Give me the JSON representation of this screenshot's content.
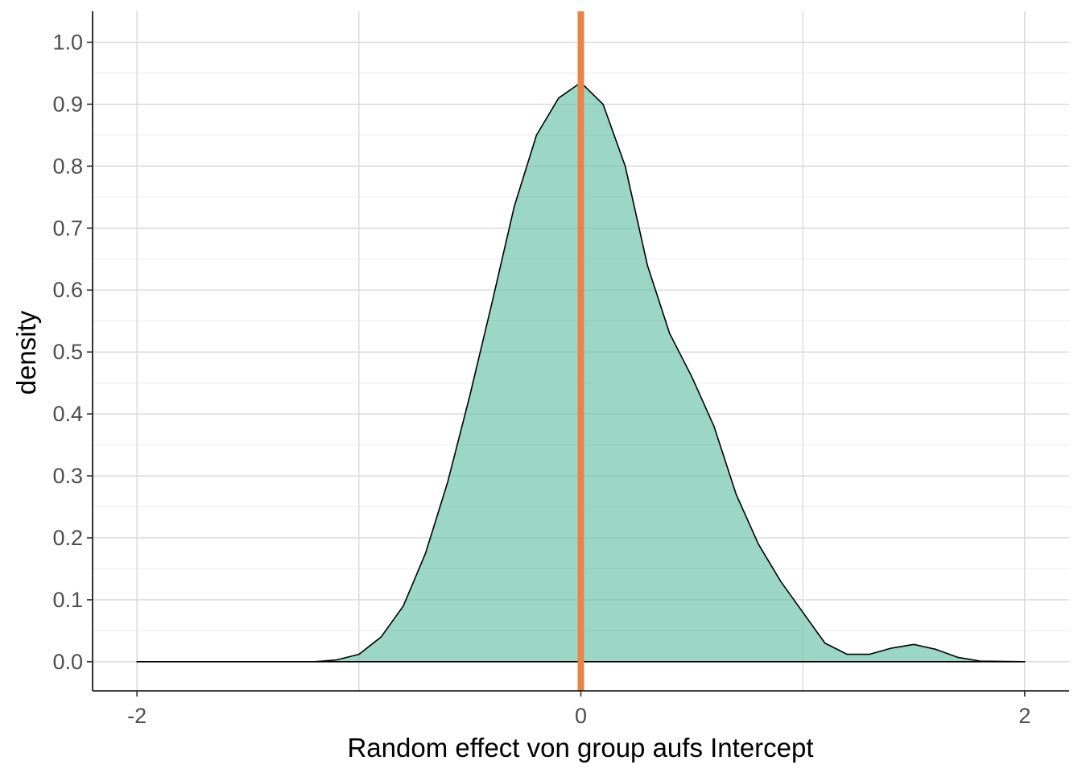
{
  "chart_data": {
    "type": "area",
    "title": "",
    "xlabel": "Random effect von group aufs Intercept",
    "ylabel": "density",
    "xlim": [
      -2.2,
      2.2
    ],
    "ylim": [
      -0.047,
      1.05
    ],
    "x_ticks": [
      -2,
      0,
      2
    ],
    "x_tick_labels": [
      "-2",
      "0",
      "2"
    ],
    "y_ticks": [
      0.0,
      0.1,
      0.2,
      0.3,
      0.4,
      0.5,
      0.6,
      0.7,
      0.8,
      0.9,
      1.0
    ],
    "y_tick_labels": [
      "0.0",
      "0.1",
      "0.2",
      "0.3",
      "0.4",
      "0.5",
      "0.6",
      "0.7",
      "0.8",
      "0.9",
      "1.0"
    ],
    "grid": true,
    "legend": "none",
    "series": [
      {
        "fill": "#66c2a5",
        "fill_opacity": 0.65,
        "stroke": "#000000",
        "points": [
          [
            -2.0,
            0.0
          ],
          [
            -1.2,
            0.0
          ],
          [
            -1.1,
            0.003
          ],
          [
            -1.0,
            0.012
          ],
          [
            -0.9,
            0.04
          ],
          [
            -0.8,
            0.09
          ],
          [
            -0.7,
            0.175
          ],
          [
            -0.6,
            0.29
          ],
          [
            -0.5,
            0.43
          ],
          [
            -0.4,
            0.58
          ],
          [
            -0.3,
            0.735
          ],
          [
            -0.2,
            0.85
          ],
          [
            -0.1,
            0.91
          ],
          [
            0.0,
            0.935
          ],
          [
            0.1,
            0.9
          ],
          [
            0.2,
            0.8
          ],
          [
            0.3,
            0.64
          ],
          [
            0.4,
            0.53
          ],
          [
            0.5,
            0.46
          ],
          [
            0.6,
            0.38
          ],
          [
            0.7,
            0.27
          ],
          [
            0.8,
            0.19
          ],
          [
            0.9,
            0.13
          ],
          [
            1.0,
            0.08
          ],
          [
            1.1,
            0.03
          ],
          [
            1.2,
            0.012
          ],
          [
            1.3,
            0.012
          ],
          [
            1.4,
            0.022
          ],
          [
            1.5,
            0.028
          ],
          [
            1.6,
            0.02
          ],
          [
            1.7,
            0.007
          ],
          [
            1.8,
            0.001
          ],
          [
            2.0,
            0.0
          ]
        ]
      }
    ],
    "reference_line": {
      "x": 0,
      "color": "#e8834a"
    }
  }
}
